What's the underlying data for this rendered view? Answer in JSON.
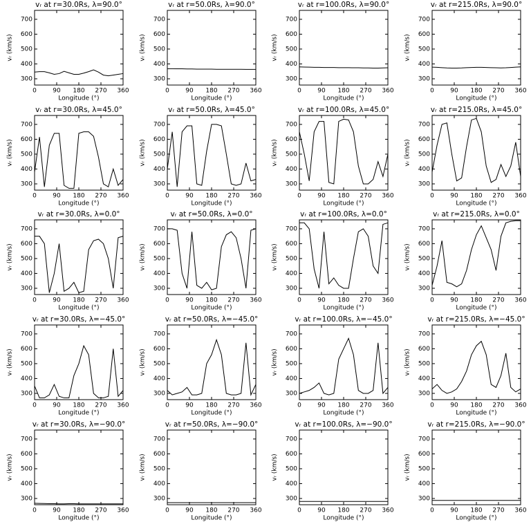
{
  "chart_data": [
    {
      "type": "line",
      "title": "vᵣ at r=30.0Rs, λ=90.0°",
      "xlabel": "Longitude (°)",
      "ylabel": "vᵣ (km/s)",
      "color": "#000000",
      "x": [
        0,
        20,
        40,
        60,
        80,
        100,
        120,
        140,
        160,
        180,
        200,
        220,
        240,
        260,
        280,
        300,
        320,
        340,
        360
      ],
      "values": [
        345,
        348,
        348,
        340,
        330,
        335,
        350,
        340,
        330,
        330,
        338,
        348,
        360,
        345,
        325,
        320,
        325,
        330,
        335
      ],
      "xlim": [
        0,
        360
      ],
      "ylim": [
        258,
        760
      ],
      "xticks": [
        0,
        90,
        180,
        270,
        360
      ],
      "yticks": [
        300,
        400,
        500,
        600,
        700
      ]
    },
    {
      "type": "line",
      "title": "vᵣ at r=50.0Rs, λ=90.0°",
      "xlabel": "Longitude (°)",
      "ylabel": "vᵣ (km/s)",
      "color": "#000000",
      "x": [
        0,
        20,
        40,
        60,
        80,
        100,
        120,
        140,
        160,
        180,
        200,
        220,
        240,
        260,
        280,
        300,
        320,
        340,
        360
      ],
      "values": [
        368,
        368,
        367,
        367,
        366,
        366,
        365,
        365,
        365,
        365,
        364,
        364,
        364,
        364,
        364,
        364,
        363,
        363,
        363
      ],
      "xlim": [
        0,
        360
      ],
      "ylim": [
        258,
        760
      ],
      "xticks": [
        0,
        90,
        180,
        270,
        360
      ],
      "yticks": [
        300,
        400,
        500,
        600,
        700
      ]
    },
    {
      "type": "line",
      "title": "vᵣ at r=100.0Rs, λ=90.0°",
      "xlabel": "Longitude (°)",
      "ylabel": "vᵣ (km/s)",
      "color": "#000000",
      "x": [
        0,
        20,
        40,
        60,
        80,
        100,
        120,
        140,
        160,
        180,
        200,
        220,
        240,
        260,
        280,
        300,
        320,
        340,
        360
      ],
      "values": [
        380,
        379,
        378,
        377,
        377,
        376,
        376,
        376,
        375,
        375,
        375,
        374,
        374,
        373,
        373,
        372,
        372,
        373,
        374
      ],
      "xlim": [
        0,
        360
      ],
      "ylim": [
        258,
        760
      ],
      "xticks": [
        0,
        90,
        180,
        270,
        360
      ],
      "yticks": [
        300,
        400,
        500,
        600,
        700
      ]
    },
    {
      "type": "line",
      "title": "vᵣ at r=215.0Rs, λ=90.0°",
      "xlabel": "Longitude (°)",
      "ylabel": "vᵣ (km/s)",
      "color": "#000000",
      "x": [
        0,
        20,
        40,
        60,
        80,
        100,
        120,
        140,
        160,
        180,
        200,
        220,
        240,
        260,
        280,
        300,
        320,
        340,
        360
      ],
      "values": [
        378,
        377,
        375,
        373,
        372,
        372,
        373,
        375,
        376,
        377,
        377,
        376,
        375,
        374,
        373,
        374,
        376,
        378,
        380
      ],
      "xlim": [
        0,
        360
      ],
      "ylim": [
        258,
        760
      ],
      "xticks": [
        0,
        90,
        180,
        270,
        360
      ],
      "yticks": [
        300,
        400,
        500,
        600,
        700
      ]
    },
    {
      "type": "line",
      "title": "vᵣ at r=30.0Rs, λ=45.0°",
      "xlabel": "Longitude (°)",
      "ylabel": "vᵣ (km/s)",
      "color": "#000000",
      "x": [
        0,
        20,
        40,
        60,
        80,
        100,
        120,
        140,
        160,
        180,
        200,
        220,
        240,
        260,
        280,
        300,
        320,
        340,
        360
      ],
      "values": [
        380,
        615,
        280,
        560,
        640,
        640,
        290,
        270,
        270,
        640,
        650,
        650,
        620,
        480,
        300,
        280,
        400,
        290,
        330
      ],
      "xlim": [
        0,
        360
      ],
      "ylim": [
        258,
        760
      ],
      "xticks": [
        0,
        90,
        180,
        270,
        360
      ],
      "yticks": [
        300,
        400,
        500,
        600,
        700
      ]
    },
    {
      "type": "line",
      "title": "vᵣ at r=50.0Rs, λ=45.0°",
      "xlabel": "Longitude (°)",
      "ylabel": "vᵣ (km/s)",
      "color": "#000000",
      "x": [
        0,
        20,
        40,
        60,
        80,
        100,
        120,
        140,
        160,
        180,
        200,
        220,
        240,
        260,
        280,
        300,
        320,
        340,
        360
      ],
      "values": [
        400,
        650,
        280,
        650,
        690,
        690,
        300,
        290,
        520,
        700,
        700,
        690,
        500,
        300,
        290,
        300,
        440,
        320,
        330
      ],
      "xlim": [
        0,
        360
      ],
      "ylim": [
        258,
        760
      ],
      "xticks": [
        0,
        90,
        180,
        270,
        360
      ],
      "yticks": [
        300,
        400,
        500,
        600,
        700
      ]
    },
    {
      "type": "line",
      "title": "vᵣ at r=100.0Rs, λ=45.0°",
      "xlabel": "Longitude (°)",
      "ylabel": "vᵣ (km/s)",
      "color": "#000000",
      "x": [
        0,
        20,
        40,
        60,
        80,
        100,
        120,
        140,
        160,
        180,
        200,
        220,
        240,
        260,
        280,
        300,
        320,
        340,
        360
      ],
      "values": [
        650,
        500,
        320,
        650,
        720,
        720,
        310,
        300,
        720,
        735,
        730,
        650,
        420,
        300,
        300,
        330,
        450,
        350,
        500
      ],
      "xlim": [
        0,
        360
      ],
      "ylim": [
        258,
        760
      ],
      "xticks": [
        0,
        90,
        180,
        270,
        360
      ],
      "yticks": [
        300,
        400,
        500,
        600,
        700
      ]
    },
    {
      "type": "line",
      "title": "vᵣ at r=215.0Rs, λ=45.0°",
      "xlabel": "Longitude (°)",
      "ylabel": "vᵣ (km/s)",
      "color": "#000000",
      "x": [
        0,
        20,
        40,
        60,
        80,
        100,
        120,
        140,
        160,
        180,
        200,
        220,
        240,
        260,
        280,
        300,
        320,
        340,
        360
      ],
      "values": [
        380,
        560,
        700,
        710,
        500,
        320,
        340,
        550,
        730,
        740,
        650,
        420,
        310,
        330,
        430,
        350,
        420,
        580,
        350
      ],
      "xlim": [
        0,
        360
      ],
      "ylim": [
        258,
        760
      ],
      "xticks": [
        0,
        90,
        180,
        270,
        360
      ],
      "yticks": [
        300,
        400,
        500,
        600,
        700
      ]
    },
    {
      "type": "line",
      "title": "vᵣ at r=30.0Rs, λ=0.0°",
      "xlabel": "Longitude (°)",
      "ylabel": "vᵣ (km/s)",
      "color": "#000000",
      "x": [
        0,
        20,
        40,
        60,
        80,
        100,
        120,
        140,
        160,
        180,
        200,
        220,
        240,
        260,
        280,
        300,
        320,
        340,
        360
      ],
      "values": [
        650,
        650,
        600,
        270,
        400,
        600,
        280,
        300,
        340,
        270,
        280,
        560,
        620,
        630,
        600,
        500,
        300,
        640,
        650
      ],
      "xlim": [
        0,
        360
      ],
      "ylim": [
        258,
        760
      ],
      "xticks": [
        0,
        90,
        180,
        270,
        360
      ],
      "yticks": [
        300,
        400,
        500,
        600,
        700
      ]
    },
    {
      "type": "line",
      "title": "vᵣ at r=50.0Rs, λ=0.0°",
      "xlabel": "Longitude (°)",
      "ylabel": "vᵣ (km/s)",
      "color": "#000000",
      "x": [
        0,
        20,
        40,
        60,
        80,
        100,
        120,
        140,
        160,
        180,
        200,
        220,
        240,
        260,
        280,
        300,
        320,
        340,
        360
      ],
      "values": [
        700,
        700,
        690,
        400,
        300,
        680,
        320,
        300,
        340,
        290,
        300,
        580,
        660,
        680,
        640,
        500,
        300,
        690,
        700
      ],
      "xlim": [
        0,
        360
      ],
      "ylim": [
        258,
        760
      ],
      "xticks": [
        0,
        90,
        180,
        270,
        360
      ],
      "yticks": [
        300,
        400,
        500,
        600,
        700
      ]
    },
    {
      "type": "line",
      "title": "vᵣ at r=100.0Rs, λ=0.0°",
      "xlabel": "Longitude (°)",
      "ylabel": "vᵣ (km/s)",
      "color": "#000000",
      "x": [
        0,
        20,
        40,
        60,
        80,
        100,
        120,
        140,
        160,
        180,
        200,
        220,
        240,
        260,
        280,
        300,
        320,
        340,
        360
      ],
      "values": [
        740,
        740,
        700,
        430,
        300,
        680,
        330,
        370,
        320,
        300,
        300,
        500,
        680,
        700,
        650,
        450,
        400,
        730,
        740
      ],
      "xlim": [
        0,
        360
      ],
      "ylim": [
        258,
        760
      ],
      "xticks": [
        0,
        90,
        180,
        270,
        360
      ],
      "yticks": [
        300,
        400,
        500,
        600,
        700
      ]
    },
    {
      "type": "line",
      "title": "vᵣ at r=215.0Rs, λ=0.0°",
      "xlabel": "Longitude (°)",
      "ylabel": "vᵣ (km/s)",
      "color": "#000000",
      "x": [
        0,
        20,
        40,
        60,
        80,
        100,
        120,
        140,
        160,
        180,
        200,
        220,
        240,
        260,
        280,
        300,
        320,
        340,
        360
      ],
      "values": [
        320,
        450,
        620,
        340,
        330,
        310,
        330,
        420,
        560,
        660,
        720,
        640,
        560,
        420,
        650,
        740,
        750,
        755,
        755
      ],
      "xlim": [
        0,
        360
      ],
      "ylim": [
        258,
        760
      ],
      "xticks": [
        0,
        90,
        180,
        270,
        360
      ],
      "yticks": [
        300,
        400,
        500,
        600,
        700
      ]
    },
    {
      "type": "line",
      "title": "vᵣ at r=30.0Rs, λ=−45.0°",
      "xlabel": "Longitude (°)",
      "ylabel": "vᵣ (km/s)",
      "color": "#000000",
      "x": [
        0,
        20,
        40,
        60,
        80,
        100,
        120,
        140,
        160,
        180,
        200,
        220,
        240,
        260,
        280,
        300,
        320,
        340,
        360
      ],
      "values": [
        350,
        270,
        270,
        290,
        360,
        280,
        270,
        270,
        420,
        500,
        620,
        560,
        300,
        270,
        270,
        280,
        600,
        280,
        320
      ],
      "xlim": [
        0,
        360
      ],
      "ylim": [
        258,
        760
      ],
      "xticks": [
        0,
        90,
        180,
        270,
        360
      ],
      "yticks": [
        300,
        400,
        500,
        600,
        700
      ]
    },
    {
      "type": "line",
      "title": "vᵣ at r=50.0Rs, λ=−45.0°",
      "xlabel": "Longitude (°)",
      "ylabel": "vᵣ (km/s)",
      "color": "#000000",
      "x": [
        0,
        20,
        40,
        60,
        80,
        100,
        120,
        140,
        160,
        180,
        200,
        220,
        240,
        260,
        280,
        300,
        320,
        340,
        360
      ],
      "values": [
        320,
        290,
        300,
        310,
        340,
        290,
        290,
        300,
        500,
        560,
        660,
        560,
        300,
        290,
        290,
        300,
        640,
        290,
        360
      ],
      "xlim": [
        0,
        360
      ],
      "ylim": [
        258,
        760
      ],
      "xticks": [
        0,
        90,
        180,
        270,
        360
      ],
      "yticks": [
        300,
        400,
        500,
        600,
        700
      ]
    },
    {
      "type": "line",
      "title": "vᵣ at r=100.0Rs, λ=−45.0°",
      "xlabel": "Longitude (°)",
      "ylabel": "vᵣ (km/s)",
      "color": "#000000",
      "x": [
        0,
        20,
        40,
        60,
        80,
        100,
        120,
        140,
        160,
        180,
        200,
        220,
        240,
        260,
        280,
        300,
        320,
        340,
        360
      ],
      "values": [
        300,
        310,
        320,
        340,
        370,
        300,
        290,
        300,
        530,
        600,
        670,
        560,
        320,
        300,
        300,
        320,
        640,
        300,
        340
      ],
      "xlim": [
        0,
        360
      ],
      "ylim": [
        258,
        760
      ],
      "xticks": [
        0,
        90,
        180,
        270,
        360
      ],
      "yticks": [
        300,
        400,
        500,
        600,
        700
      ]
    },
    {
      "type": "line",
      "title": "vᵣ at r=215.0Rs, λ=−45.0°",
      "xlabel": "Longitude (°)",
      "ylabel": "vᵣ (km/s)",
      "color": "#000000",
      "x": [
        0,
        20,
        40,
        60,
        80,
        100,
        120,
        140,
        160,
        180,
        200,
        220,
        240,
        260,
        280,
        300,
        320,
        340,
        360
      ],
      "values": [
        330,
        360,
        320,
        300,
        310,
        330,
        380,
        450,
        560,
        620,
        650,
        560,
        360,
        340,
        420,
        570,
        340,
        310,
        330
      ],
      "xlim": [
        0,
        360
      ],
      "ylim": [
        258,
        760
      ],
      "xticks": [
        0,
        90,
        180,
        270,
        360
      ],
      "yticks": [
        300,
        400,
        500,
        600,
        700
      ]
    },
    {
      "type": "line",
      "title": "vᵣ at r=30.0Rs, λ=−90.0°",
      "xlabel": "Longitude (°)",
      "ylabel": "vᵣ (km/s)",
      "color": "#000000",
      "x": [
        0,
        20,
        40,
        60,
        80,
        100,
        120,
        140,
        160,
        180,
        200,
        220,
        240,
        260,
        280,
        300,
        320,
        340,
        360
      ],
      "values": [
        268,
        267,
        266,
        265,
        265,
        264,
        264,
        265,
        265,
        264,
        264,
        264,
        264,
        264,
        264,
        264,
        264,
        264,
        264
      ],
      "xlim": [
        0,
        360
      ],
      "ylim": [
        258,
        760
      ],
      "xticks": [
        0,
        90,
        180,
        270,
        360
      ],
      "yticks": [
        300,
        400,
        500,
        600,
        700
      ]
    },
    {
      "type": "line",
      "title": "vᵣ at r=50.0Rs, λ=−90.0°",
      "xlabel": "Longitude (°)",
      "ylabel": "vᵣ (km/s)",
      "color": "#000000",
      "x": [
        0,
        20,
        40,
        60,
        80,
        100,
        120,
        140,
        160,
        180,
        200,
        220,
        240,
        260,
        280,
        300,
        320,
        340,
        360
      ],
      "values": [
        272,
        272,
        272,
        272,
        272,
        272,
        272,
        272,
        272,
        272,
        272,
        272,
        272,
        272,
        272,
        272,
        272,
        272,
        272
      ],
      "xlim": [
        0,
        360
      ],
      "ylim": [
        258,
        760
      ],
      "xticks": [
        0,
        90,
        180,
        270,
        360
      ],
      "yticks": [
        300,
        400,
        500,
        600,
        700
      ]
    },
    {
      "type": "line",
      "title": "vᵣ at r=100.0Rs, λ=−90.0°",
      "xlabel": "Longitude (°)",
      "ylabel": "vᵣ (km/s)",
      "color": "#000000",
      "x": [
        0,
        20,
        40,
        60,
        80,
        100,
        120,
        140,
        160,
        180,
        200,
        220,
        240,
        260,
        280,
        300,
        320,
        340,
        360
      ],
      "values": [
        280,
        280,
        280,
        280,
        280,
        280,
        280,
        280,
        280,
        280,
        280,
        280,
        280,
        280,
        280,
        280,
        280,
        280,
        280
      ],
      "xlim": [
        0,
        360
      ],
      "ylim": [
        258,
        760
      ],
      "xticks": [
        0,
        90,
        180,
        270,
        360
      ],
      "yticks": [
        300,
        400,
        500,
        600,
        700
      ]
    },
    {
      "type": "line",
      "title": "vᵣ at r=215.0Rs, λ=−90.0°",
      "xlabel": "Longitude (°)",
      "ylabel": "vᵣ (km/s)",
      "color": "#000000",
      "x": [
        0,
        20,
        40,
        60,
        80,
        100,
        120,
        140,
        160,
        180,
        200,
        220,
        240,
        260,
        280,
        300,
        320,
        340,
        360
      ],
      "values": [
        287,
        287,
        287,
        287,
        287,
        287,
        287,
        287,
        287,
        287,
        287,
        287,
        287,
        287,
        287,
        287,
        287,
        287,
        287
      ],
      "xlim": [
        0,
        360
      ],
      "ylim": [
        258,
        760
      ],
      "xticks": [
        0,
        90,
        180,
        270,
        360
      ],
      "yticks": [
        300,
        400,
        500,
        600,
        700
      ]
    }
  ]
}
